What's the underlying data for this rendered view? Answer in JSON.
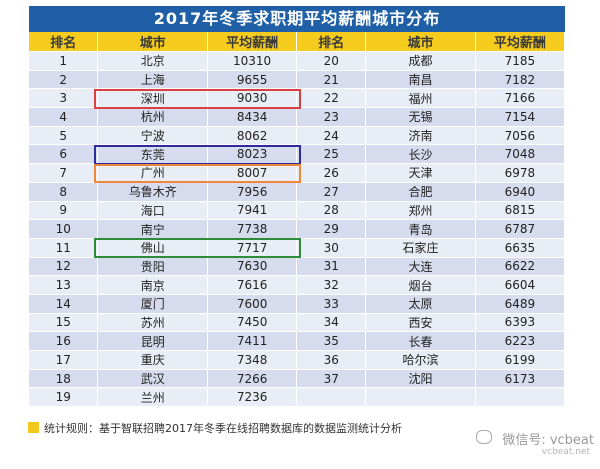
{
  "title": "2017年冬季求职期平均薪酬城市分布",
  "headers": [
    "排名",
    "城市",
    "平均薪酬",
    "排名",
    "城市",
    "平均薪酬"
  ],
  "rows": [
    [
      "1",
      "北京",
      "10310",
      "20",
      "成都",
      "7185"
    ],
    [
      "2",
      "上海",
      "9655",
      "21",
      "南昌",
      "7182"
    ],
    [
      "3",
      "深圳",
      "9030",
      "22",
      "福州",
      "7166"
    ],
    [
      "4",
      "杭州",
      "8434",
      "23",
      "无锡",
      "7154"
    ],
    [
      "5",
      "宁波",
      "8062",
      "24",
      "济南",
      "7056"
    ],
    [
      "6",
      "东莞",
      "8023",
      "25",
      "长沙",
      "7048"
    ],
    [
      "7",
      "广州",
      "8007",
      "26",
      "天津",
      "6978"
    ],
    [
      "8",
      "乌鲁木齐",
      "7956",
      "27",
      "合肥",
      "6940"
    ],
    [
      "9",
      "海口",
      "7941",
      "28",
      "郑州",
      "6815"
    ],
    [
      "10",
      "南宁",
      "7738",
      "29",
      "青岛",
      "6787"
    ],
    [
      "11",
      "佛山",
      "7717",
      "30",
      "石家庄",
      "6635"
    ],
    [
      "12",
      "贵阳",
      "7630",
      "31",
      "大连",
      "6622"
    ],
    [
      "13",
      "南京",
      "7616",
      "32",
      "烟台",
      "6604"
    ],
    [
      "14",
      "厦门",
      "7600",
      "33",
      "太原",
      "6489"
    ],
    [
      "15",
      "苏州",
      "7450",
      "34",
      "西安",
      "6393"
    ],
    [
      "16",
      "昆明",
      "7411",
      "35",
      "长春",
      "6223"
    ],
    [
      "17",
      "重庆",
      "7348",
      "36",
      "哈尔滨",
      "6199"
    ],
    [
      "18",
      "武汉",
      "7266",
      "37",
      "沈阳",
      "6173"
    ],
    [
      "19",
      "兰州",
      "7236",
      "",
      "",
      ""
    ]
  ],
  "highlights": [
    {
      "city": "深圳",
      "color": "#d94040"
    },
    {
      "city": "东莞",
      "color": "#2b2b9e"
    },
    {
      "city": "广州",
      "color": "#f0883a"
    },
    {
      "city": "佛山",
      "color": "#2e8b3a"
    }
  ],
  "footer": {
    "note": "统计规则：基于智联招聘2017年冬季在线招聘数据库的数据监测统计分析",
    "square_color": "#f2c81c"
  },
  "watermark": {
    "main": "微信号: vcbeat",
    "sub": "vcbeat.net"
  }
}
